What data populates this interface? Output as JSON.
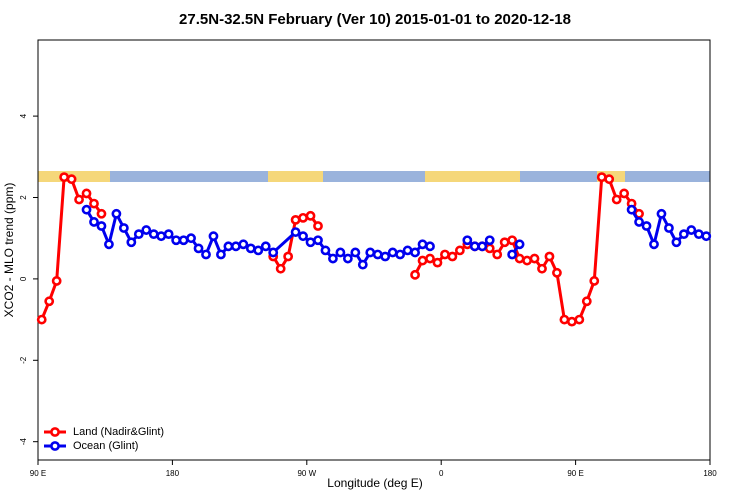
{
  "chart_data": {
    "type": "line",
    "title": "27.5N-32.5N February (Ver 10)   2015-01-01 to 2020-12-18",
    "x_label": "Longitude (deg E)",
    "y_label": "XCO2 - MLO trend (ppm)",
    "xlim": [
      90,
      540
    ],
    "ylim": [
      -4.45,
      5.87
    ],
    "xticks": [
      {
        "value": 90,
        "label": "90 E"
      },
      180,
      {
        "value": 270,
        "label": "90 W"
      },
      {
        "value": 360,
        "label": "0"
      },
      {
        "value": 450,
        "label": "90 E"
      },
      {
        "value": 540,
        "label": "180"
      }
    ],
    "yticks": [
      -4,
      -2,
      0,
      2,
      4
    ],
    "legend": "bottomleft",
    "series": [
      {
        "name": "Land (Nadir&Glint)",
        "color": "#ff0000",
        "x": [
          92.5,
          97.5,
          102.5,
          107.5,
          112.5,
          117.5,
          122.5,
          127.5,
          132.5,
          137.5,
          247.5,
          252.5,
          257.5,
          262.5,
          267.5,
          272.5,
          277.5,
          282.5,
          342.5,
          347.5,
          352.5,
          357.5,
          362.5,
          367.5,
          372.5,
          377.5,
          382.5,
          387.5,
          392.5,
          397.5,
          402.5,
          407.5,
          412.5,
          417.5,
          422.5,
          427.5,
          432.5,
          437.5,
          442.5,
          447.5,
          452.5,
          457.5,
          462.5,
          467.5,
          472.5,
          477.5,
          482.5,
          487.5,
          492.5
        ],
        "values": [
          -1.0,
          -0.55,
          -0.05,
          2.5,
          2.45,
          1.95,
          2.1,
          1.85,
          1.6,
          null,
          0.55,
          0.25,
          0.55,
          1.45,
          1.5,
          1.55,
          1.3,
          null,
          0.1,
          0.45,
          0.5,
          0.4,
          0.6,
          0.55,
          0.7,
          0.85,
          0.8,
          0.8,
          0.75,
          0.6,
          0.9,
          0.95,
          0.5,
          0.45,
          0.5,
          0.25,
          0.55,
          0.15,
          -1.0,
          -1.05,
          -1.0,
          -0.55,
          -0.05,
          2.5,
          2.45,
          1.95,
          2.1,
          1.85,
          1.6
        ]
      },
      {
        "name": "Ocean (Glint)",
        "color": "#0000ee",
        "x": [
          122.5,
          127.5,
          132.5,
          137.5,
          142.5,
          147.5,
          152.5,
          157.5,
          162.5,
          167.5,
          172.5,
          177.5,
          182.5,
          187.5,
          192.5,
          197.5,
          202.5,
          207.5,
          212.5,
          217.5,
          222.5,
          227.5,
          232.5,
          237.5,
          242.5,
          247.5,
          262.5,
          267.5,
          272.5,
          277.5,
          282.5,
          287.5,
          292.5,
          297.5,
          302.5,
          307.5,
          312.5,
          317.5,
          322.5,
          327.5,
          332.5,
          337.5,
          342.5,
          347.5,
          352.5,
          357.5,
          377.5,
          382.5,
          387.5,
          392.5,
          397.5,
          407.5,
          412.5,
          417.5,
          487.5,
          492.5,
          497.5,
          502.5,
          507.5,
          512.5,
          517.5,
          522.5,
          527.5,
          532.5,
          537.5
        ],
        "values": [
          1.7,
          1.4,
          1.3,
          0.85,
          1.6,
          1.25,
          0.9,
          1.1,
          1.2,
          1.1,
          1.05,
          1.1,
          0.95,
          0.95,
          1.0,
          0.75,
          0.6,
          1.05,
          0.6,
          0.8,
          0.8,
          0.85,
          0.75,
          0.7,
          0.8,
          0.65,
          1.15,
          1.05,
          0.9,
          0.95,
          0.7,
          0.5,
          0.65,
          0.5,
          0.65,
          0.35,
          0.65,
          0.6,
          0.55,
          0.65,
          0.6,
          0.7,
          0.65,
          0.85,
          0.8,
          null,
          0.95,
          0.8,
          0.8,
          0.95,
          null,
          0.6,
          0.85,
          null,
          1.7,
          1.4,
          1.3,
          0.85,
          1.6,
          1.25,
          0.9,
          1.1,
          1.2,
          1.1,
          1.05
        ]
      }
    ]
  }
}
